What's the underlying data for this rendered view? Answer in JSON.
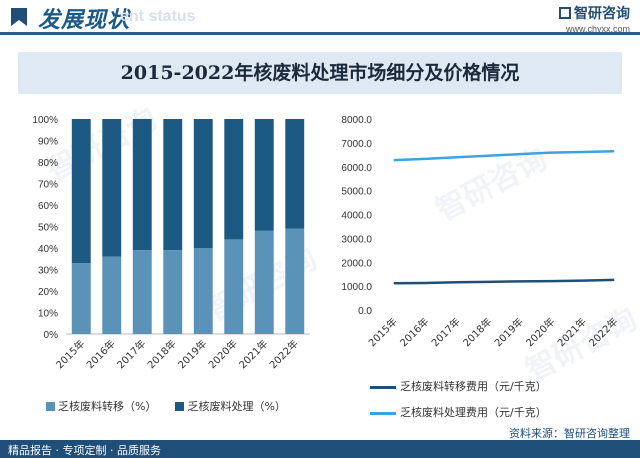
{
  "header": {
    "title": "发展现状",
    "subtitle": "ent status",
    "brand_name": "智研咨询",
    "brand_url": "www.chyxx.com"
  },
  "banner": {
    "title": "2015-2022年核废料处理市场细分及价格情况"
  },
  "footer": {
    "left": "精品报告 · 专项定制 · 品质服务",
    "source": "资料来源：智研咨询整理"
  },
  "colors": {
    "primary": "#1f4e79",
    "bar_transfer": "#5b93b8",
    "bar_process": "#1c5a84",
    "line_transfer": "#1f4e79",
    "line_process": "#3aa3e3"
  },
  "chart_data": [
    {
      "type": "bar",
      "stacked": true,
      "categories": [
        "2015年",
        "2016年",
        "2017年",
        "2018年",
        "2019年",
        "2020年",
        "2021年",
        "2022年"
      ],
      "series": [
        {
          "name": "乏核废料转移（%）",
          "values": [
            0.33,
            0.36,
            0.39,
            0.39,
            0.4,
            0.44,
            0.48,
            0.49
          ]
        },
        {
          "name": "乏核废料处理（%）",
          "values": [
            0.67,
            0.64,
            0.61,
            0.61,
            0.6,
            0.56,
            0.52,
            0.51
          ]
        }
      ],
      "ylim": [
        0,
        1
      ],
      "yticks": [
        "0%",
        "10%",
        "20%",
        "30%",
        "40%",
        "50%",
        "60%",
        "70%",
        "80%",
        "90%",
        "100%"
      ],
      "legend": "bottom"
    },
    {
      "type": "line",
      "categories": [
        "2015年",
        "2016年",
        "2017年",
        "2018年",
        "2019年",
        "2020年",
        "2021年",
        "2022年"
      ],
      "series": [
        {
          "name": "乏核废料转移费用（元/千克）",
          "values": [
            1120,
            1130,
            1160,
            1180,
            1200,
            1210,
            1230,
            1260
          ]
        },
        {
          "name": "乏核废料处理费用（元/千克）",
          "values": [
            6280,
            6330,
            6400,
            6460,
            6530,
            6590,
            6620,
            6650
          ]
        }
      ],
      "ylim": [
        0,
        8000
      ],
      "yticks": [
        "0.0",
        "1000.0",
        "2000.0",
        "3000.0",
        "4000.0",
        "5000.0",
        "6000.0",
        "7000.0",
        "8000.0"
      ],
      "legend": "bottom"
    }
  ]
}
